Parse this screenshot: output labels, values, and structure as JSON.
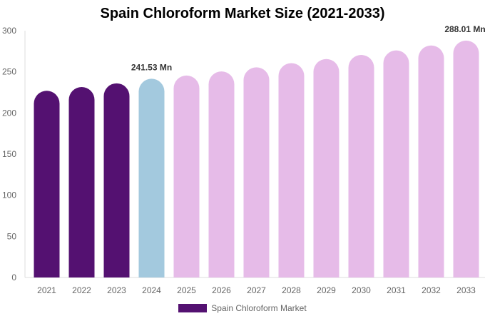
{
  "chart_data": {
    "type": "bar",
    "title": "Spain Chloroform Market Size (2021-2033)",
    "categories": [
      "2021",
      "2022",
      "2023",
      "2024",
      "2025",
      "2026",
      "2027",
      "2028",
      "2029",
      "2030",
      "2031",
      "2032",
      "2033"
    ],
    "series": [
      {
        "name": "Spain Chloroform Market",
        "values": [
          227,
          231.5,
          236,
          241.53,
          245.5,
          250.5,
          255.5,
          260.5,
          265.5,
          270.5,
          276,
          282,
          288.01
        ]
      }
    ],
    "data_labels": {
      "3": "241.53 Mn",
      "12": "288.01 Mn"
    },
    "ylim": [
      0,
      300
    ],
    "yticks": [
      0,
      50,
      100,
      150,
      200,
      250,
      300
    ],
    "grid": false,
    "legend": "bottom",
    "colors": {
      "historical": "#541171",
      "current": "#a3c9de",
      "forecast": "#e6bbe8"
    },
    "color_groups": [
      "historical",
      "historical",
      "historical",
      "current",
      "forecast",
      "forecast",
      "forecast",
      "forecast",
      "forecast",
      "forecast",
      "forecast",
      "forecast",
      "forecast"
    ]
  }
}
